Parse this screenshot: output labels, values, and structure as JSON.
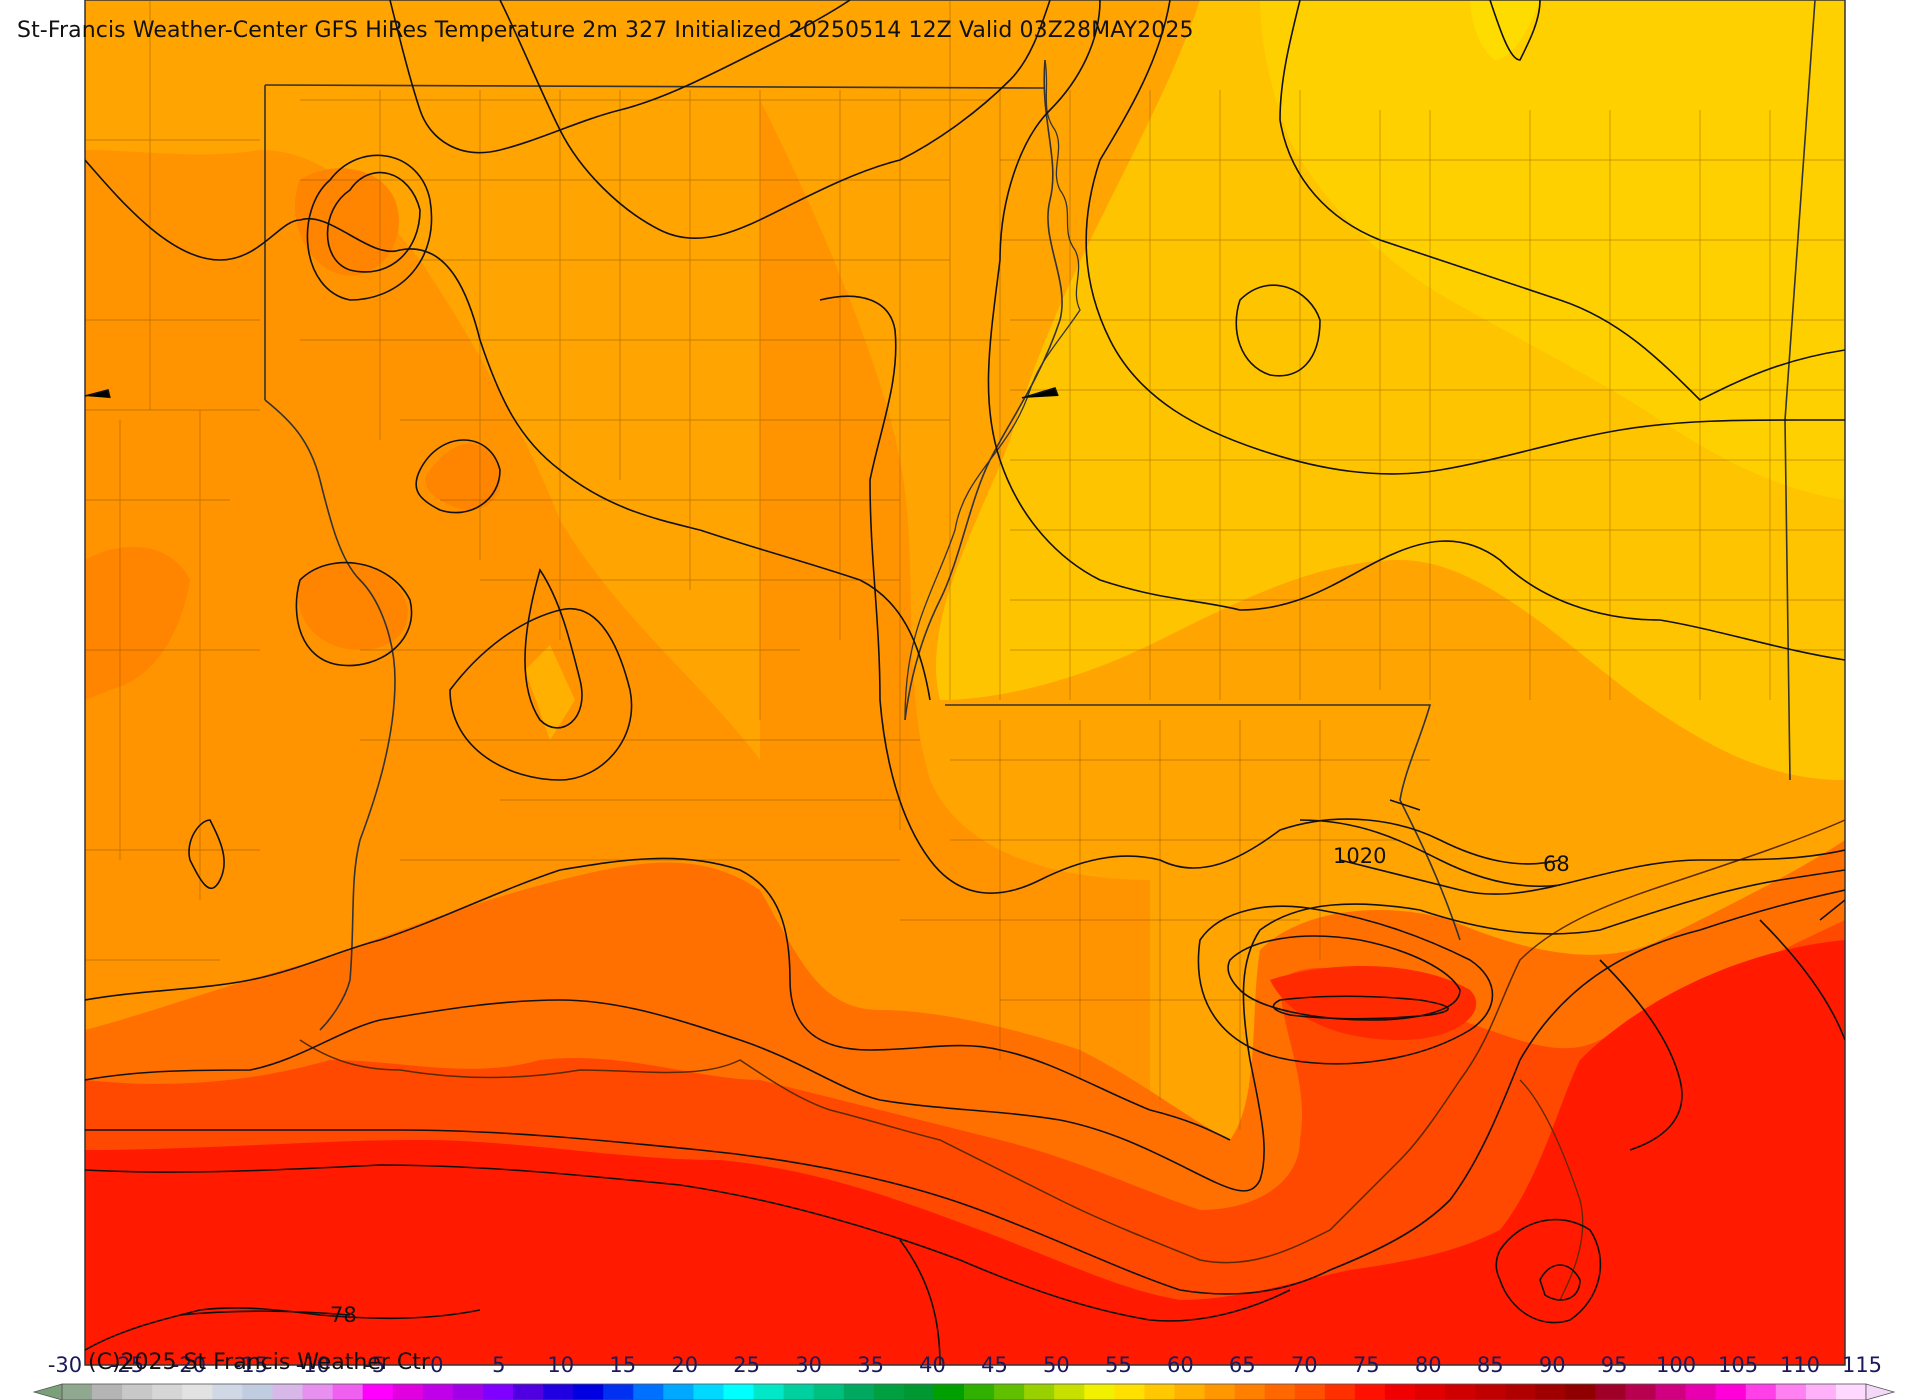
{
  "title": "St-Francis Weather-Center GFS HiRes Temperature 2m  327 Initialized 20250514 12Z Valid 03Z28MAY2025",
  "copyright": "(C)2025 St Francis Weather Ctr",
  "contour_labels": {
    "isobar_1020": "1020",
    "isotherm_68": "68",
    "isotherm_78": "78"
  },
  "colorbar": {
    "ticks": [
      "-30",
      "-25",
      "-20",
      "-15",
      "-10",
      "-5",
      "0",
      "5",
      "10",
      "15",
      "20",
      "25",
      "30",
      "35",
      "40",
      "45",
      "50",
      "55",
      "60",
      "65",
      "70",
      "75",
      "80",
      "85",
      "90",
      "95",
      "100",
      "105",
      "110",
      "115"
    ],
    "colors": [
      "#8fa88f",
      "#b4b4b4",
      "#c8c8c8",
      "#d6d6d6",
      "#e2e2e2",
      "#d0d8e6",
      "#c0cce0",
      "#d8b8e8",
      "#e890f0",
      "#f060f0",
      "#ff00ff",
      "#e000e0",
      "#c000e8",
      "#a000e8",
      "#8000ff",
      "#5000e0",
      "#2000e0",
      "#0000e0",
      "#0030f0",
      "#0070ff",
      "#00a8ff",
      "#00d8ff",
      "#00ffff",
      "#00e8c8",
      "#00d0a0",
      "#00c080",
      "#00a860",
      "#00a040",
      "#009830",
      "#00a000",
      "#30b000",
      "#60c000",
      "#98d000",
      "#c8e000",
      "#f0f000",
      "#ffe000",
      "#ffc800",
      "#ffb000",
      "#ff9800",
      "#ff8000",
      "#ff6800",
      "#ff5000",
      "#ff3000",
      "#ff1000",
      "#f00000",
      "#e00000",
      "#d00000",
      "#c00000",
      "#b00000",
      "#a00000",
      "#900000",
      "#a00028",
      "#b80050",
      "#d00080",
      "#e800b0",
      "#ff00d8",
      "#ff40e8",
      "#ff80f0",
      "#ffb0f8",
      "#ffd8ff"
    ],
    "min_color": "#7aa07a",
    "max_color": "#f4d8f8"
  }
}
